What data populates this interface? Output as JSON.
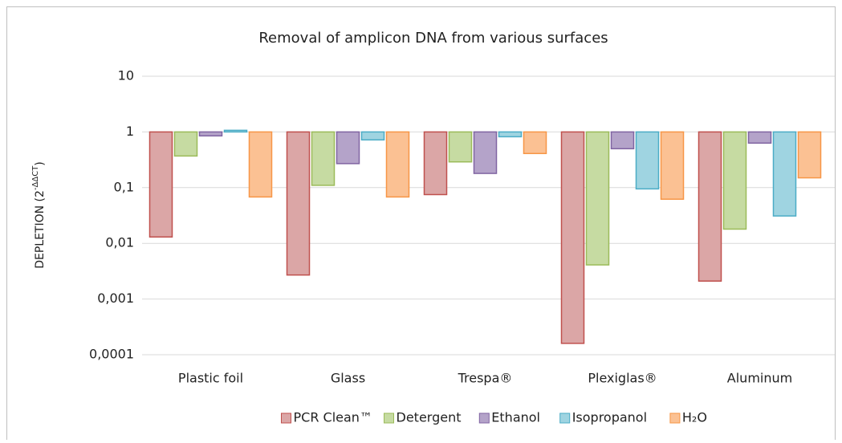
{
  "chart_data": {
    "type": "bar",
    "title": "Removal of amplicon DNA from various surfaces",
    "ylabel": [
      "DEPLETION (2",
      "-ΔΔCT",
      ")"
    ],
    "categories": [
      "Plastic foil",
      "Glass",
      "Trespa®",
      "Plexiglas®",
      "Aluminum"
    ],
    "series": [
      {
        "name": "PCR Clean™",
        "color": "#dba6a6",
        "edgecolor": "#c0504d",
        "values": [
          0.013,
          0.0027,
          0.075,
          0.00016,
          0.0021
        ]
      },
      {
        "name": "Detergent",
        "color": "#c6dba2",
        "edgecolor": "#9bbb59",
        "values": [
          0.37,
          0.11,
          0.29,
          0.0041,
          0.018
        ]
      },
      {
        "name": "Ethanol",
        "color": "#b4a3c9",
        "edgecolor": "#8064a2",
        "values": [
          0.85,
          0.27,
          0.18,
          0.5,
          0.63
        ]
      },
      {
        "name": "Isopropanol",
        "color": "#9fd4e1",
        "edgecolor": "#4bacc6",
        "values": [
          1.07,
          0.72,
          0.82,
          0.095,
          0.031
        ]
      },
      {
        "name": "H₂O",
        "color": "#fbc193",
        "edgecolor": "#f79646",
        "values": [
          0.068,
          0.068,
          0.41,
          0.062,
          0.15
        ]
      }
    ],
    "ylim": [
      0.0001,
      10
    ],
    "log_y": true,
    "x_axis_crosses": 1,
    "yticks": [
      {
        "value": 0.0001,
        "label": "0,0001"
      },
      {
        "value": 0.001,
        "label": "0,001"
      },
      {
        "value": 0.01,
        "label": "0,01"
      },
      {
        "value": 0.1,
        "label": "0,1"
      },
      1,
      10
    ],
    "grid": true,
    "legend": "bottom"
  }
}
